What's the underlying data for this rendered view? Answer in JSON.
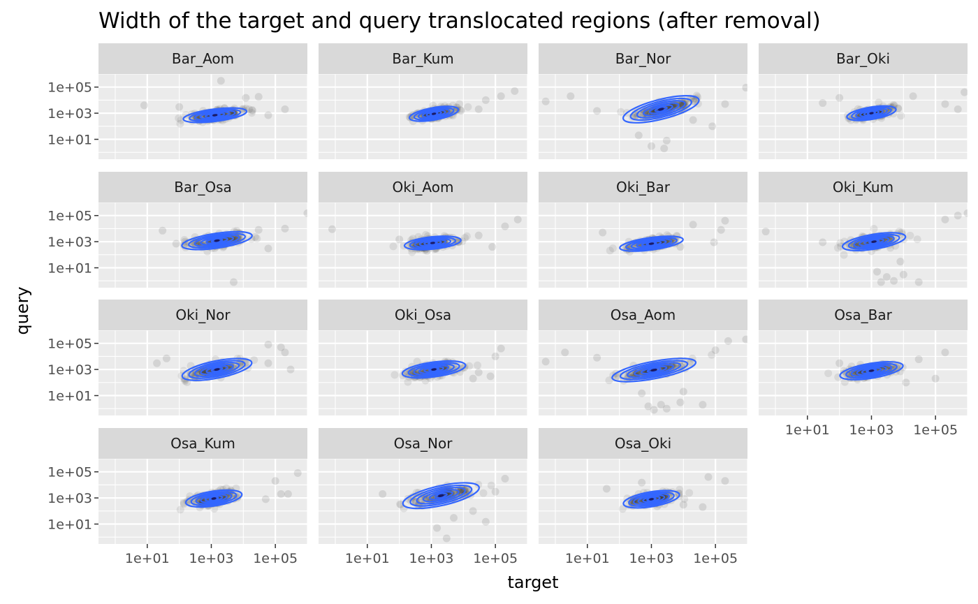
{
  "chart_data": {
    "type": "scatter",
    "title": "Width of the target and query translocated regions (after removal)",
    "xlabel": "target",
    "ylabel": "query",
    "x_scale": "log10",
    "y_scale": "log10",
    "xlim": [
      0.3,
      1000000
    ],
    "ylim": [
      0.3,
      1000000
    ],
    "x_ticks": [
      10,
      1000,
      100000
    ],
    "x_tick_labels": [
      "1e+01",
      "1e+03",
      "1e+05"
    ],
    "y_ticks": [
      10,
      1000,
      100000
    ],
    "y_tick_labels": [
      "1e+01",
      "1e+03",
      "1e+05"
    ],
    "grid": true,
    "layers": [
      "points (semi-transparent grey)",
      "2D density contours (blue)"
    ],
    "colors": {
      "points": "#333333",
      "contour": "#3366ff",
      "panel_bg": "#ebebeb",
      "strip_bg": "#d9d9d9",
      "grid": "#ffffff"
    },
    "panels": [
      {
        "label": "Bar_Aom",
        "center": [
          1300,
          700
        ],
        "spread": [
          0.45,
          0.25
        ],
        "corr": 0.55,
        "points": [
          [
            8,
            4000
          ],
          [
            2000,
            300000
          ],
          [
            200000,
            2000
          ],
          [
            12000,
            15000
          ],
          [
            30000,
            18000
          ],
          [
            100,
            3000
          ],
          [
            60000,
            700
          ]
        ]
      },
      {
        "label": "Bar_Kum",
        "center": [
          1200,
          900
        ],
        "spread": [
          0.35,
          0.25
        ],
        "corr": 0.6,
        "points": [
          [
            400000,
            50000
          ],
          [
            150000,
            20000
          ],
          [
            50000,
            10000
          ],
          [
            30000,
            2000
          ]
        ]
      },
      {
        "label": "Bar_Nor",
        "center": [
          2000,
          2000
        ],
        "spread": [
          0.55,
          0.4
        ],
        "corr": 0.85,
        "points": [
          [
            0.5,
            8000
          ],
          [
            3,
            20000
          ],
          [
            20,
            1500
          ],
          [
            900000,
            90000
          ],
          [
            80000,
            100
          ],
          [
            400,
            20
          ],
          [
            1000,
            3
          ],
          [
            2500,
            2
          ],
          [
            3000,
            8
          ],
          [
            20000,
            300
          ],
          [
            200000,
            5000
          ],
          [
            700,
            400
          ]
        ]
      },
      {
        "label": "Bar_Oki",
        "center": [
          1000,
          1000
        ],
        "spread": [
          0.35,
          0.25
        ],
        "corr": 0.55,
        "points": [
          [
            100,
            15000
          ],
          [
            30,
            6000
          ],
          [
            800000,
            40000
          ],
          [
            500000,
            2000
          ],
          [
            200000,
            5000
          ],
          [
            20000,
            20000
          ]
        ]
      },
      {
        "label": "Bar_Osa",
        "center": [
          1500,
          1200
        ],
        "spread": [
          0.5,
          0.3
        ],
        "corr": 0.6,
        "points": [
          [
            1000000,
            150000
          ],
          [
            30,
            7000
          ],
          [
            150,
            1000
          ],
          [
            80,
            700
          ],
          [
            5000,
            0.8
          ],
          [
            200000,
            10000
          ],
          [
            60000,
            300
          ],
          [
            30000,
            8000
          ]
        ]
      },
      {
        "label": "Oki_Aom",
        "center": [
          1100,
          800
        ],
        "spread": [
          0.4,
          0.25
        ],
        "corr": 0.4,
        "points": [
          [
            0.8,
            9000
          ],
          [
            200000,
            15000
          ],
          [
            500000,
            50000
          ],
          [
            30000,
            3000
          ],
          [
            100,
            1500
          ],
          [
            80000,
            400
          ]
        ]
      },
      {
        "label": "Oki_Bar",
        "center": [
          1000,
          700
        ],
        "spread": [
          0.45,
          0.25
        ],
        "corr": 0.6,
        "points": [
          [
            30,
            5000
          ],
          [
            20000,
            20000
          ],
          [
            150000,
            8000
          ],
          [
            200000,
            40000
          ],
          [
            8000,
            400
          ],
          [
            90000,
            900
          ]
        ]
      },
      {
        "label": "Oki_Kum",
        "center": [
          1200,
          1000
        ],
        "spread": [
          0.45,
          0.3
        ],
        "corr": 0.6,
        "points": [
          [
            0.5,
            6000
          ],
          [
            30,
            900
          ],
          [
            200000,
            50000
          ],
          [
            500000,
            100000
          ],
          [
            1000000,
            150000
          ],
          [
            5000,
            1
          ],
          [
            10000,
            3
          ],
          [
            3000,
            2
          ],
          [
            8000,
            30
          ],
          [
            2000,
            0.8
          ],
          [
            30000,
            0.8
          ],
          [
            1500,
            5
          ]
        ]
      },
      {
        "label": "Oki_Nor",
        "center": [
          1500,
          1000
        ],
        "spread": [
          0.5,
          0.35
        ],
        "corr": 0.7,
        "points": [
          [
            40,
            7000
          ],
          [
            20,
            3000
          ],
          [
            60000,
            80000
          ],
          [
            150000,
            50000
          ],
          [
            200000,
            20000
          ],
          [
            300000,
            1000
          ],
          [
            60000,
            3000
          ]
        ]
      },
      {
        "label": "Oki_Osa",
        "center": [
          1200,
          1000
        ],
        "spread": [
          0.45,
          0.3
        ],
        "corr": 0.5,
        "points": [
          [
            150000,
            40000
          ],
          [
            100000,
            10000
          ],
          [
            70000,
            300
          ],
          [
            30000,
            600
          ],
          [
            20000,
            200
          ]
        ]
      },
      {
        "label": "Osa_Aom",
        "center": [
          1200,
          900
        ],
        "spread": [
          0.6,
          0.35
        ],
        "corr": 0.8,
        "points": [
          [
            0.5,
            4000
          ],
          [
            2,
            20000
          ],
          [
            20,
            8000
          ],
          [
            250000,
            150000
          ],
          [
            900000,
            200000
          ],
          [
            100000,
            30000
          ],
          [
            500,
            15
          ],
          [
            800,
            1.5
          ],
          [
            1200,
            0.8
          ],
          [
            2000,
            2
          ],
          [
            3000,
            1
          ],
          [
            8000,
            3
          ],
          [
            10000,
            20
          ],
          [
            40000,
            2
          ]
        ]
      },
      {
        "label": "Osa_Bar",
        "center": [
          1000,
          800
        ],
        "spread": [
          0.45,
          0.3
        ],
        "corr": 0.6,
        "points": [
          [
            100,
            3000
          ],
          [
            200000,
            20000
          ],
          [
            100000,
            200
          ],
          [
            30000,
            6000
          ],
          [
            12000,
            100
          ]
        ]
      },
      {
        "label": "Osa_Kum",
        "center": [
          1200,
          900
        ],
        "spread": [
          0.4,
          0.3
        ],
        "corr": 0.5,
        "points": [
          [
            500000,
            80000
          ],
          [
            100000,
            20000
          ],
          [
            150000,
            2000
          ],
          [
            250000,
            2000
          ],
          [
            50000,
            800
          ]
        ]
      },
      {
        "label": "Osa_Nor",
        "center": [
          2000,
          1500
        ],
        "spread": [
          0.55,
          0.4
        ],
        "corr": 0.75,
        "points": [
          [
            30,
            2000
          ],
          [
            200000,
            30000
          ],
          [
            100000,
            3000
          ],
          [
            50000,
            15
          ],
          [
            20000,
            100
          ],
          [
            5000,
            30
          ],
          [
            1500,
            5
          ],
          [
            3000,
            0.8
          ]
        ]
      },
      {
        "label": "Osa_Oki",
        "center": [
          1000,
          800
        ],
        "spread": [
          0.4,
          0.3
        ],
        "corr": 0.55,
        "points": [
          [
            40,
            5000
          ],
          [
            500,
            15000
          ],
          [
            60000,
            40000
          ],
          [
            200000,
            20000
          ],
          [
            40000,
            200
          ],
          [
            10000,
            300
          ]
        ]
      }
    ]
  }
}
